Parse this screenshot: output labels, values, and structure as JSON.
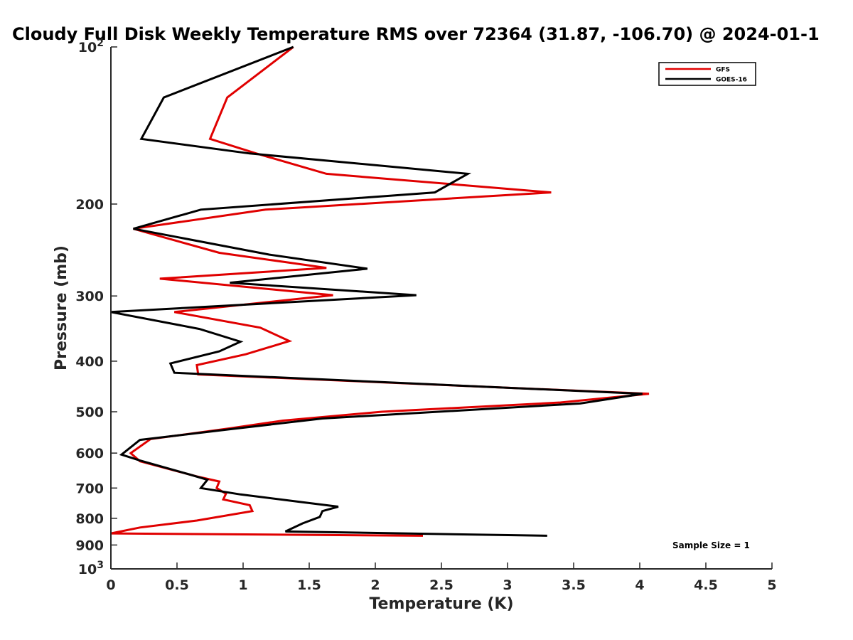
{
  "chart_data": {
    "type": "line",
    "title": "Cloudy Full Disk Weekly Temperature RMS over 72364 (31.87, -106.70) @ 2024-01-1",
    "xlabel": "Temperature (K)",
    "ylabel": "Pressure (mb)",
    "xlim": [
      0,
      5
    ],
    "ylim": [
      100,
      1000
    ],
    "y_scale": "log",
    "y_reversed": true,
    "x_ticks": [
      "0",
      "0.5",
      "1",
      "1.5",
      "2",
      "2.5",
      "3",
      "3.5",
      "4",
      "4.5",
      "5"
    ],
    "y_ticks": [
      {
        "value": 100,
        "label": "10",
        "sup": "2"
      },
      {
        "value": 200,
        "label": "200"
      },
      {
        "value": 300,
        "label": "300"
      },
      {
        "value": 400,
        "label": "400"
      },
      {
        "value": 500,
        "label": "500"
      },
      {
        "value": 600,
        "label": "600"
      },
      {
        "value": 700,
        "label": "700"
      },
      {
        "value": 800,
        "label": "800"
      },
      {
        "value": 900,
        "label": "900"
      },
      {
        "value": 1000,
        "label": "10",
        "sup": "3"
      }
    ],
    "grid": false,
    "legend": "top-right",
    "annotation": "Sample Size = 1",
    "series": [
      {
        "name": "GFS",
        "color": "#e00000",
        "points": [
          [
            1.38,
            100
          ],
          [
            0.88,
            125
          ],
          [
            0.75,
            150
          ],
          [
            1.1,
            160
          ],
          [
            1.63,
            175
          ],
          [
            3.33,
            190
          ],
          [
            1.17,
            205
          ],
          [
            0.17,
            223
          ],
          [
            0.82,
            248
          ],
          [
            1.63,
            265
          ],
          [
            0.37,
            278
          ],
          [
            1.68,
            299
          ],
          [
            0.48,
            322
          ],
          [
            1.13,
            345
          ],
          [
            1.35,
            366
          ],
          [
            1.02,
            388
          ],
          [
            0.65,
            407
          ],
          [
            0.66,
            424
          ],
          [
            4.07,
            462
          ],
          [
            3.4,
            480
          ],
          [
            2.05,
            500
          ],
          [
            1.3,
            520
          ],
          [
            0.9,
            538
          ],
          [
            0.3,
            564
          ],
          [
            0.15,
            600
          ],
          [
            0.22,
            622
          ],
          [
            0.65,
            665
          ],
          [
            0.82,
            680
          ],
          [
            0.8,
            700
          ],
          [
            0.87,
            718
          ],
          [
            0.85,
            736
          ],
          [
            1.05,
            755
          ],
          [
            1.07,
            775
          ],
          [
            0.65,
            808
          ],
          [
            0.22,
            833
          ],
          [
            0.0,
            855
          ],
          [
            2.36,
            864
          ]
        ]
      },
      {
        "name": "GOES-16",
        "color": "#000000",
        "points": [
          [
            1.38,
            100
          ],
          [
            0.4,
            125
          ],
          [
            0.23,
            150
          ],
          [
            1.05,
            160
          ],
          [
            2.7,
            175
          ],
          [
            2.45,
            190
          ],
          [
            0.68,
            205
          ],
          [
            0.17,
            223
          ],
          [
            1.2,
            250
          ],
          [
            1.94,
            266
          ],
          [
            0.9,
            283
          ],
          [
            2.31,
            299
          ],
          [
            0.0,
            322
          ],
          [
            0.67,
            347
          ],
          [
            0.98,
            367
          ],
          [
            0.82,
            383
          ],
          [
            0.45,
            404
          ],
          [
            0.48,
            421
          ],
          [
            4.02,
            462
          ],
          [
            3.55,
            482
          ],
          [
            1.6,
            515
          ],
          [
            0.9,
            540
          ],
          [
            0.22,
            566
          ],
          [
            0.08,
            604
          ],
          [
            0.22,
            620
          ],
          [
            0.6,
            660
          ],
          [
            0.73,
            675
          ],
          [
            0.68,
            700
          ],
          [
            0.98,
            720
          ],
          [
            1.45,
            745
          ],
          [
            1.72,
            760
          ],
          [
            1.6,
            775
          ],
          [
            1.58,
            795
          ],
          [
            1.45,
            818
          ],
          [
            1.32,
            848
          ],
          [
            3.3,
            864
          ]
        ]
      }
    ]
  }
}
